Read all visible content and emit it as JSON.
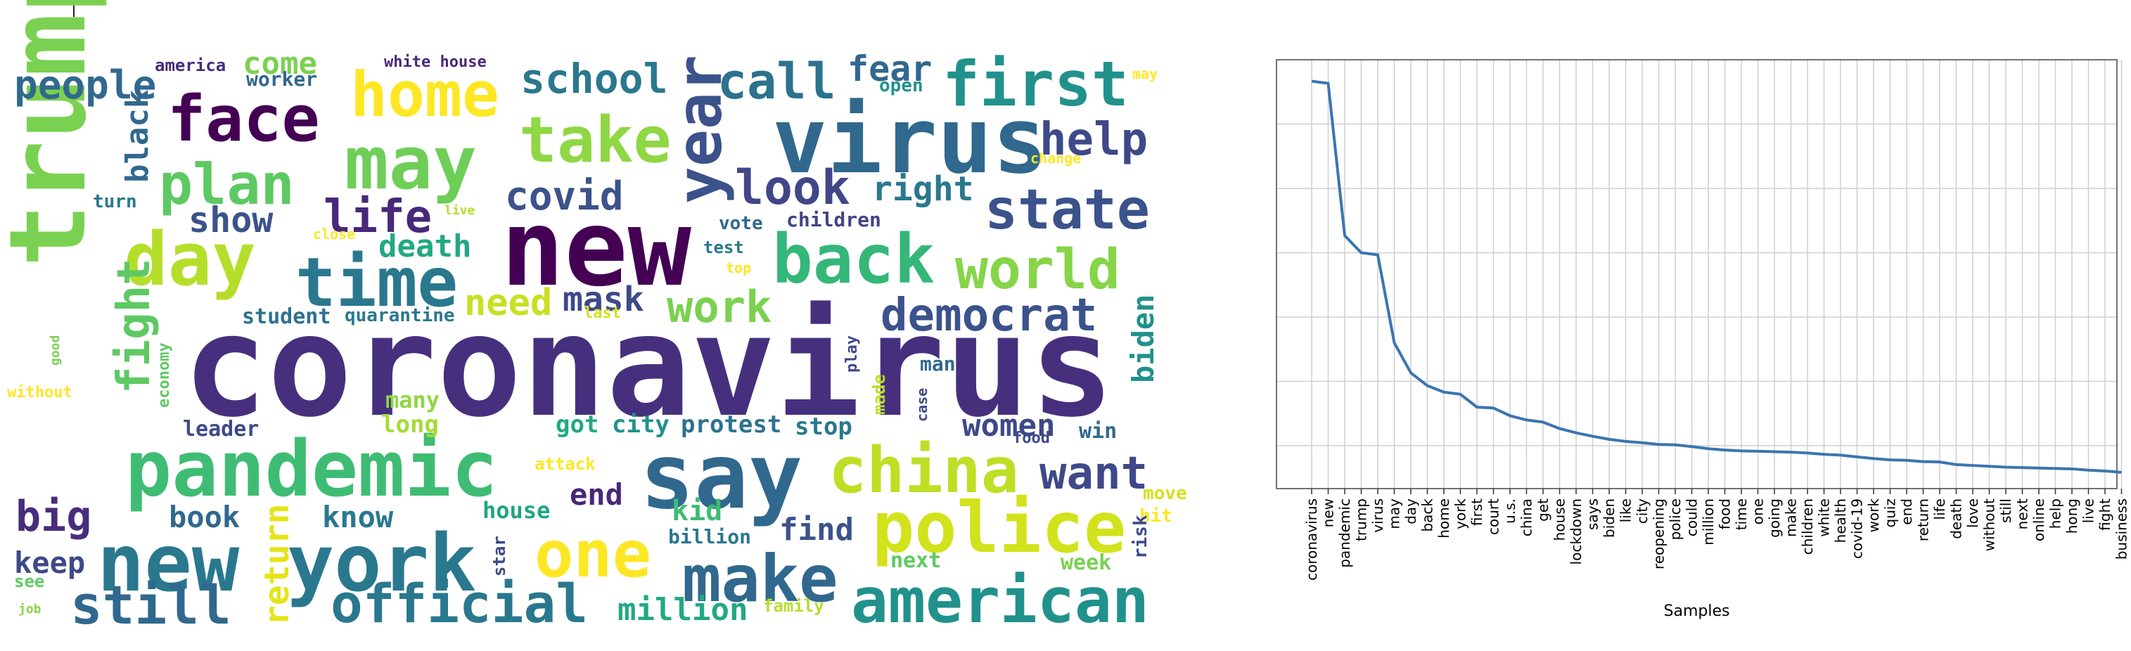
{
  "wordcloud": {
    "words": [
      {
        "text": "coronavirus",
        "color": "#46307e"
      },
      {
        "text": "trump",
        "color": "#7ad151"
      },
      {
        "text": "new",
        "color": "#440154"
      },
      {
        "text": "virus",
        "color": "#31688e"
      },
      {
        "text": "pandemic",
        "color": "#3fbc73"
      },
      {
        "text": "say",
        "color": "#31688e"
      },
      {
        "text": "new york",
        "color": "#2a788e"
      },
      {
        "text": "police",
        "color": "#d2e21b"
      },
      {
        "text": "china",
        "color": "#bddf26"
      },
      {
        "text": "american",
        "color": "#21918c"
      },
      {
        "text": "make",
        "color": "#31688e"
      },
      {
        "text": "official",
        "color": "#2a788e"
      },
      {
        "text": "one",
        "color": "#fde725"
      },
      {
        "text": "still",
        "color": "#31688e"
      },
      {
        "text": "back",
        "color": "#35b779"
      },
      {
        "text": "may",
        "color": "#6ece58"
      },
      {
        "text": "day",
        "color": "#b5de2b"
      },
      {
        "text": "time",
        "color": "#2a788e"
      },
      {
        "text": "take",
        "color": "#8fd744"
      },
      {
        "text": "first",
        "color": "#21918c"
      },
      {
        "text": "face",
        "color": "#440154"
      },
      {
        "text": "home",
        "color": "#fde725"
      },
      {
        "text": "world",
        "color": "#86d549"
      },
      {
        "text": "state",
        "color": "#3b528b"
      },
      {
        "text": "plan",
        "color": "#5ec962"
      },
      {
        "text": "year",
        "color": "#3b528b"
      },
      {
        "text": "democrat",
        "color": "#3b528b"
      },
      {
        "text": "look",
        "color": "#404688"
      },
      {
        "text": "call",
        "color": "#2c728e"
      },
      {
        "text": "help",
        "color": "#3e4989"
      },
      {
        "text": "life",
        "color": "#482878"
      },
      {
        "text": "want",
        "color": "#3e4989"
      },
      {
        "text": "work",
        "color": "#7ad151"
      },
      {
        "text": "fight",
        "color": "#5ec962"
      },
      {
        "text": "big",
        "color": "#472d7b"
      },
      {
        "text": "school",
        "color": "#2a788e"
      },
      {
        "text": "people",
        "color": "#31688e"
      },
      {
        "text": "covid",
        "color": "#3b528b"
      },
      {
        "text": "show",
        "color": "#3b528b"
      },
      {
        "text": "need",
        "color": "#c8e020"
      },
      {
        "text": "mask",
        "color": "#3e4989"
      },
      {
        "text": "death",
        "color": "#22a884"
      },
      {
        "text": "right",
        "color": "#2a788e"
      },
      {
        "text": "fear",
        "color": "#31688e"
      },
      {
        "text": "keep",
        "color": "#3e4989"
      },
      {
        "text": "return",
        "color": "#e5e419"
      },
      {
        "text": "black",
        "color": "#31688e"
      },
      {
        "text": "come",
        "color": "#7ad151"
      },
      {
        "text": "women",
        "color": "#3e4989"
      },
      {
        "text": "book",
        "color": "#31688e"
      },
      {
        "text": "know",
        "color": "#2a788e"
      },
      {
        "text": "end",
        "color": "#482878"
      },
      {
        "text": "find",
        "color": "#3b528b"
      },
      {
        "text": "kid",
        "color": "#3fbc73"
      },
      {
        "text": "million",
        "color": "#22a884"
      },
      {
        "text": "biden",
        "color": "#21918c"
      },
      {
        "text": "house",
        "color": "#20a486"
      },
      {
        "text": "protest",
        "color": "#2c728e"
      },
      {
        "text": "got",
        "color": "#22a884"
      },
      {
        "text": "city",
        "color": "#21918c"
      },
      {
        "text": "stop",
        "color": "#2a788e"
      },
      {
        "text": "many",
        "color": "#8fd744"
      },
      {
        "text": "long",
        "color": "#a5db36"
      },
      {
        "text": "leader",
        "color": "#3e4989"
      },
      {
        "text": "man",
        "color": "#31688e"
      },
      {
        "text": "worker",
        "color": "#31688e"
      },
      {
        "text": "america",
        "color": "#472d7b"
      },
      {
        "text": "white house",
        "color": "#482878"
      },
      {
        "text": "student",
        "color": "#2c728e"
      },
      {
        "text": "quarantine",
        "color": "#2a788e"
      },
      {
        "text": "children",
        "color": "#414487"
      },
      {
        "text": "vote",
        "color": "#31688e"
      },
      {
        "text": "test",
        "color": "#2a788e"
      },
      {
        "text": "turn",
        "color": "#2a788e"
      },
      {
        "text": "week",
        "color": "#7ad151"
      },
      {
        "text": "next",
        "color": "#5ec962"
      },
      {
        "text": "billion",
        "color": "#2a788e"
      },
      {
        "text": "win",
        "color": "#31688e"
      },
      {
        "text": "food",
        "color": "#3e4989"
      },
      {
        "text": "open",
        "color": "#21918c"
      },
      {
        "text": "see",
        "color": "#5ec962"
      },
      {
        "text": "job",
        "color": "#86d549"
      },
      {
        "text": "family",
        "color": "#b5de2b"
      },
      {
        "text": "star",
        "color": "#3e4989"
      },
      {
        "text": "attack",
        "color": "#fde725"
      },
      {
        "text": "economy",
        "color": "#5ec962"
      },
      {
        "text": "good",
        "color": "#7ad151"
      },
      {
        "text": "without",
        "color": "#fde725"
      },
      {
        "text": "last",
        "color": "#d2e21b"
      },
      {
        "text": "top",
        "color": "#fde725"
      },
      {
        "text": "close",
        "color": "#fde725"
      },
      {
        "text": "live",
        "color": "#b5de2b"
      },
      {
        "text": "change",
        "color": "#fde725"
      },
      {
        "text": "play",
        "color": "#3e4989"
      },
      {
        "text": "made",
        "color": "#bddf26"
      },
      {
        "text": "case",
        "color": "#3e4989"
      },
      {
        "text": "hit",
        "color": "#fde725"
      },
      {
        "text": "move",
        "color": "#d2e21b"
      },
      {
        "text": "risk",
        "color": "#3e4989"
      },
      {
        "text": "may",
        "color": "#fde725"
      }
    ]
  },
  "chart_data": {
    "type": "line",
    "xlabel": "Samples",
    "ylabel": "",
    "title": "",
    "grid": true,
    "line_color": "#3b75af",
    "categories": [
      "coronavirus",
      "new",
      "pandemic",
      "trump",
      "virus",
      "may",
      "day",
      "back",
      "home",
      "york",
      "first",
      "court",
      "u.s.",
      "china",
      "get",
      "house",
      "lockdown",
      "says",
      "biden",
      "like",
      "city",
      "reopening",
      "police",
      "could",
      "million",
      "food",
      "time",
      "one",
      "going",
      "make",
      "children",
      "white",
      "health",
      "covid-19",
      "work",
      "quiz",
      "end",
      "return",
      "life",
      "death",
      "love",
      "without",
      "still",
      "next",
      "online",
      "help",
      "hong",
      "live",
      "fight",
      "business"
    ],
    "values": [
      1000,
      995,
      640,
      600,
      595,
      390,
      320,
      290,
      275,
      270,
      240,
      238,
      220,
      210,
      205,
      190,
      180,
      172,
      165,
      160,
      157,
      153,
      152,
      148,
      143,
      140,
      138,
      137,
      136,
      135,
      133,
      130,
      128,
      124,
      120,
      117,
      116,
      113,
      112,
      106,
      104,
      102,
      100,
      99,
      98,
      97,
      96,
      93,
      91,
      88
    ],
    "ylim": [
      50,
      1050
    ]
  }
}
